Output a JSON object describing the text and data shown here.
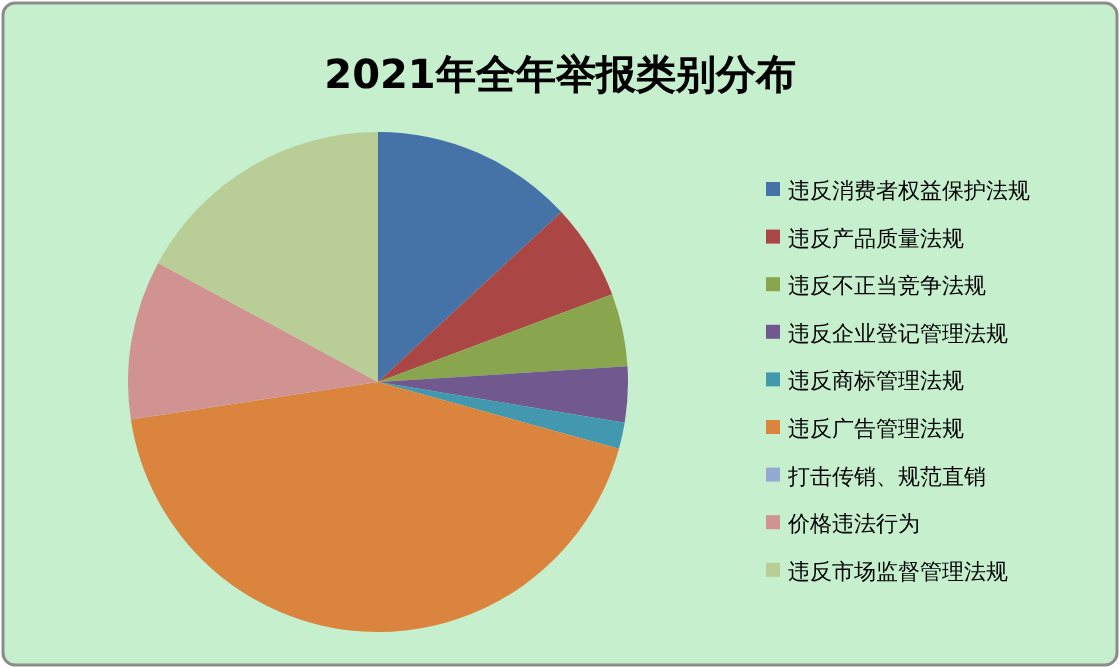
{
  "chart_data": {
    "type": "pie",
    "title": "2021年全年举报类别分布",
    "categories": [
      "违反消费者权益保护法规",
      "违反产品质量法规",
      "违反不正当竞争法规",
      "违反企业登记管理法规",
      "违反商标管理法规",
      "违反广告管理法规",
      "打击传销、规范直销",
      "价格违法行为",
      "违反市场监督管理法规"
    ],
    "values": [
      13.1,
      6.2,
      4.7,
      3.6,
      1.7,
      43.3,
      0,
      10.3,
      17.1
    ],
    "colors": [
      "#4572a7",
      "#aa4643",
      "#89a54e",
      "#71588f",
      "#4198af",
      "#db843d",
      "#93a9cf",
      "#d19392",
      "#b9cd96"
    ],
    "legend": "right"
  }
}
